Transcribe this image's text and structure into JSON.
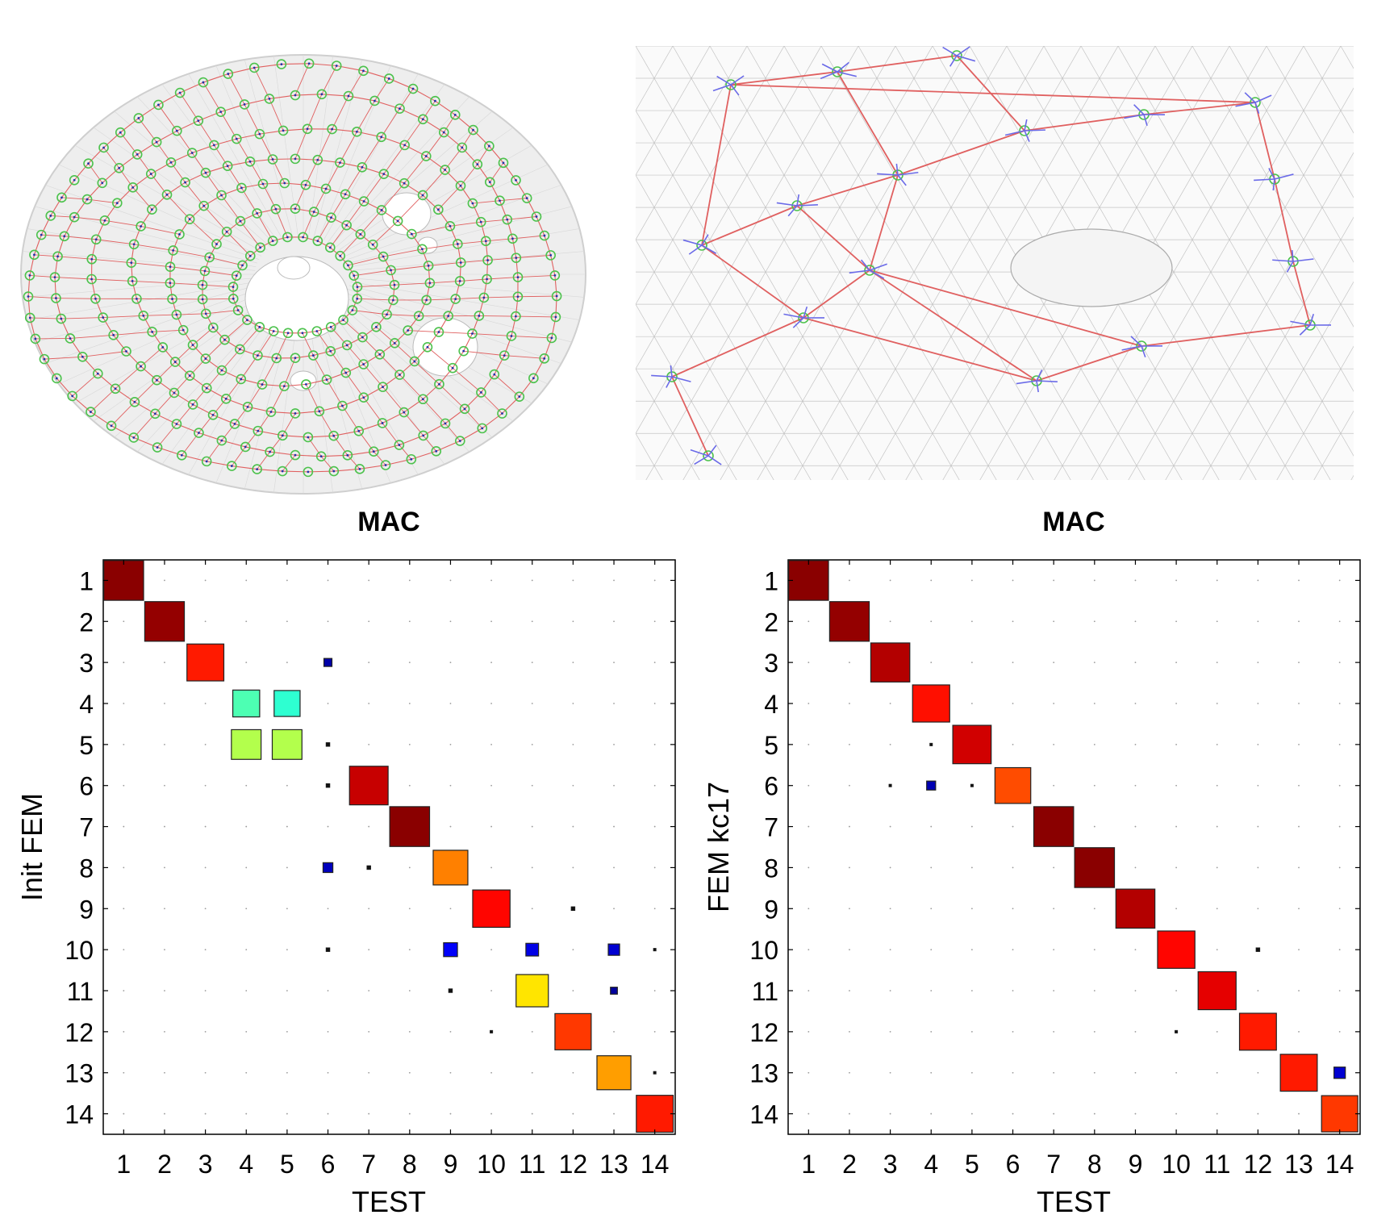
{
  "colors": {
    "mesh_grey": "#c8c8c8",
    "red_line": "#e06060",
    "green_node": "#4cc24c",
    "blue_arrow": "#6a6ae8",
    "axis": "#000000"
  },
  "chart_data": [
    {
      "type": "heatmap",
      "title": "MAC",
      "xlabel": "TEST",
      "ylabel": "Init FEM",
      "x_categories": [
        "1",
        "2",
        "3",
        "4",
        "5",
        "6",
        "7",
        "8",
        "9",
        "10",
        "11",
        "12",
        "13",
        "14"
      ],
      "y_categories": [
        "1",
        "2",
        "3",
        "4",
        "5",
        "6",
        "7",
        "8",
        "9",
        "10",
        "11",
        "12",
        "13",
        "14"
      ],
      "colormap": "jet",
      "value_range": [
        0,
        1
      ],
      "cells": [
        {
          "x": 1,
          "y": 1,
          "v": 0.99
        },
        {
          "x": 2,
          "y": 2,
          "v": 0.98
        },
        {
          "x": 3,
          "y": 3,
          "v": 0.85
        },
        {
          "x": 4,
          "y": 4,
          "v": 0.45
        },
        {
          "x": 5,
          "y": 4,
          "v": 0.42
        },
        {
          "x": 4,
          "y": 5,
          "v": 0.55
        },
        {
          "x": 5,
          "y": 5,
          "v": 0.55
        },
        {
          "x": 6,
          "y": 3,
          "v": 0.04
        },
        {
          "x": 6,
          "y": 5,
          "v": 0.01
        },
        {
          "x": 6,
          "y": 6,
          "v": 0.01
        },
        {
          "x": 7,
          "y": 6,
          "v": 0.93
        },
        {
          "x": 8,
          "y": 7,
          "v": 0.99
        },
        {
          "x": 6,
          "y": 8,
          "v": 0.06
        },
        {
          "x": 7,
          "y": 8,
          "v": 0.01
        },
        {
          "x": 9,
          "y": 8,
          "v": 0.75
        },
        {
          "x": 12,
          "y": 9,
          "v": 0.01
        },
        {
          "x": 10,
          "y": 9,
          "v": 0.87
        },
        {
          "x": 6,
          "y": 10,
          "v": 0.01
        },
        {
          "x": 9,
          "y": 10,
          "v": 0.12
        },
        {
          "x": 11,
          "y": 10,
          "v": 0.1
        },
        {
          "x": 13,
          "y": 10,
          "v": 0.08
        },
        {
          "x": 14,
          "y": 10,
          "v": 0.005
        },
        {
          "x": 9,
          "y": 11,
          "v": 0.01
        },
        {
          "x": 11,
          "y": 11,
          "v": 0.65
        },
        {
          "x": 13,
          "y": 11,
          "v": 0.03
        },
        {
          "x": 10,
          "y": 12,
          "v": 0.005
        },
        {
          "x": 12,
          "y": 12,
          "v": 0.82
        },
        {
          "x": 13,
          "y": 13,
          "v": 0.72
        },
        {
          "x": 14,
          "y": 13,
          "v": 0.005
        },
        {
          "x": 14,
          "y": 14,
          "v": 0.85
        }
      ]
    },
    {
      "type": "heatmap",
      "title": "MAC",
      "xlabel": "TEST",
      "ylabel": "FEM kc17",
      "x_categories": [
        "1",
        "2",
        "3",
        "4",
        "5",
        "6",
        "7",
        "8",
        "9",
        "10",
        "11",
        "12",
        "13",
        "14"
      ],
      "y_categories": [
        "1",
        "2",
        "3",
        "4",
        "5",
        "6",
        "7",
        "8",
        "9",
        "10",
        "11",
        "12",
        "13",
        "14"
      ],
      "colormap": "jet",
      "value_range": [
        0,
        1
      ],
      "cells": [
        {
          "x": 1,
          "y": 1,
          "v": 0.99
        },
        {
          "x": 2,
          "y": 2,
          "v": 0.98
        },
        {
          "x": 3,
          "y": 3,
          "v": 0.95
        },
        {
          "x": 4,
          "y": 4,
          "v": 0.86
        },
        {
          "x": 5,
          "y": 5,
          "v": 0.92
        },
        {
          "x": 4,
          "y": 5,
          "v": 0.005
        },
        {
          "x": 3,
          "y": 6,
          "v": 0.005
        },
        {
          "x": 4,
          "y": 6,
          "v": 0.05
        },
        {
          "x": 5,
          "y": 6,
          "v": 0.005
        },
        {
          "x": 6,
          "y": 6,
          "v": 0.8
        },
        {
          "x": 7,
          "y": 7,
          "v": 0.99
        },
        {
          "x": 8,
          "y": 8,
          "v": 0.99
        },
        {
          "x": 9,
          "y": 9,
          "v": 0.95
        },
        {
          "x": 10,
          "y": 10,
          "v": 0.87
        },
        {
          "x": 12,
          "y": 10,
          "v": 0.01
        },
        {
          "x": 11,
          "y": 11,
          "v": 0.9
        },
        {
          "x": 10,
          "y": 12,
          "v": 0.005
        },
        {
          "x": 12,
          "y": 12,
          "v": 0.85
        },
        {
          "x": 13,
          "y": 13,
          "v": 0.85
        },
        {
          "x": 14,
          "y": 13,
          "v": 0.08
        },
        {
          "x": 14,
          "y": 14,
          "v": 0.82
        }
      ]
    }
  ]
}
